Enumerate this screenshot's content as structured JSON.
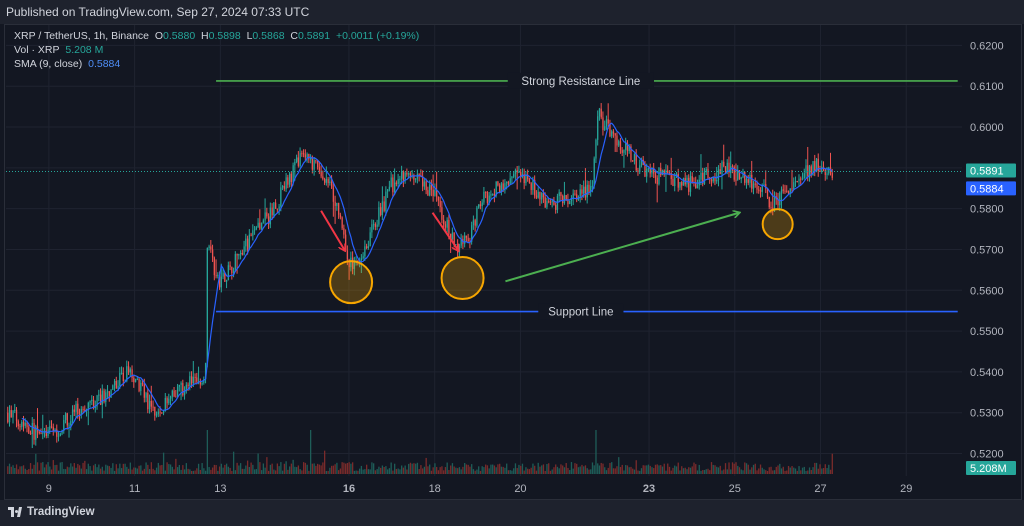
{
  "header": {
    "published": "Published on TradingView.com, Sep 27, 2024 07:33 UTC"
  },
  "legend": {
    "symbol": "XRP / TetherUS, 1h, Binance",
    "open_label": "O",
    "open": "0.5880",
    "high_label": "H",
    "high": "0.5898",
    "low_label": "L",
    "low": "0.5868",
    "close_label": "C",
    "close": "0.5891",
    "change": "+0.0011 (+0.19%)",
    "vol_label": "Vol · XRP",
    "vol": "5.208 M",
    "sma_label": "SMA (9, close)",
    "sma": "0.5884"
  },
  "footer": {
    "brand": "TradingView"
  },
  "colors": {
    "up": "#26a69a",
    "down": "#ef5350",
    "sma": "#2962ff",
    "resistance": "#4caf50",
    "support": "#2962ff",
    "circle": "#f7a600",
    "arrow": "#f23645",
    "trend": "#4caf50"
  },
  "chart_data": {
    "type": "candlestick",
    "y_axis": {
      "range": [
        0.5145,
        0.625
      ],
      "ticks": [
        "0.6200",
        "0.6100",
        "0.6000",
        "0.5900",
        "0.5800",
        "0.5700",
        "0.5600",
        "0.5500",
        "0.5400",
        "0.5300",
        "0.5200"
      ]
    },
    "x_axis": {
      "range_days": [
        8.0,
        30.3
      ],
      "ticks": [
        {
          "day": 9,
          "label": "9"
        },
        {
          "day": 11,
          "label": "11"
        },
        {
          "day": 13,
          "label": "13"
        },
        {
          "day": 16,
          "label": "16"
        },
        {
          "day": 18,
          "label": "18"
        },
        {
          "day": 20,
          "label": "20"
        },
        {
          "day": 23,
          "label": "23"
        },
        {
          "day": 25,
          "label": "25"
        },
        {
          "day": 27,
          "label": "27"
        },
        {
          "day": 29,
          "label": "29"
        }
      ]
    },
    "price_path": [
      [
        8.0,
        0.53
      ],
      [
        8.4,
        0.528
      ],
      [
        8.8,
        0.524
      ],
      [
        9.2,
        0.526
      ],
      [
        9.6,
        0.53
      ],
      [
        10.0,
        0.532
      ],
      [
        10.4,
        0.535
      ],
      [
        10.8,
        0.54
      ],
      [
        11.0,
        0.539
      ],
      [
        11.3,
        0.533
      ],
      [
        11.5,
        0.529
      ],
      [
        11.8,
        0.533
      ],
      [
        12.1,
        0.536
      ],
      [
        12.5,
        0.5385
      ],
      [
        12.65,
        0.54
      ],
      [
        12.7,
        0.575
      ],
      [
        12.9,
        0.562
      ],
      [
        13.1,
        0.564
      ],
      [
        13.4,
        0.568
      ],
      [
        13.8,
        0.574
      ],
      [
        14.2,
        0.579
      ],
      [
        14.6,
        0.587
      ],
      [
        14.9,
        0.593
      ],
      [
        15.2,
        0.59
      ],
      [
        15.5,
        0.587
      ],
      [
        15.8,
        0.578
      ],
      [
        16.0,
        0.566
      ],
      [
        16.3,
        0.569
      ],
      [
        16.6,
        0.576
      ],
      [
        17.0,
        0.586
      ],
      [
        17.4,
        0.588
      ],
      [
        17.9,
        0.585
      ],
      [
        18.2,
        0.578
      ],
      [
        18.5,
        0.57
      ],
      [
        18.8,
        0.573
      ],
      [
        19.1,
        0.582
      ],
      [
        19.5,
        0.586
      ],
      [
        19.9,
        0.588
      ],
      [
        20.3,
        0.585
      ],
      [
        20.7,
        0.581
      ],
      [
        21.1,
        0.583
      ],
      [
        21.5,
        0.584
      ],
      [
        21.7,
        0.588
      ],
      [
        21.8,
        0.603
      ],
      [
        22.1,
        0.599
      ],
      [
        22.4,
        0.595
      ],
      [
        22.8,
        0.59
      ],
      [
        23.2,
        0.588
      ],
      [
        23.6,
        0.587
      ],
      [
        24.0,
        0.586
      ],
      [
        24.4,
        0.588
      ],
      [
        24.8,
        0.59
      ],
      [
        25.2,
        0.588
      ],
      [
        25.6,
        0.585
      ],
      [
        25.9,
        0.581
      ],
      [
        26.2,
        0.584
      ],
      [
        26.6,
        0.589
      ],
      [
        26.9,
        0.591
      ],
      [
        27.2,
        0.588
      ],
      [
        27.3,
        0.5891
      ]
    ],
    "last_price": 0.5891,
    "last_price_label": "0.5891",
    "sma_last": 0.5884,
    "sma_last_label": "0.5884",
    "volume_last_label": "5.208M",
    "volume_spike_days": [
      12.7,
      15.1,
      21.75
    ],
    "resistance": {
      "price": 0.6113,
      "from_day": 12.9,
      "to_day": 30.2,
      "label": "Strong Resistance Line"
    },
    "support": {
      "price": 0.5548,
      "from_day": 12.9,
      "to_day": 30.2,
      "label": "Support Line"
    },
    "circles": [
      {
        "day": 16.05,
        "price": 0.562
      },
      {
        "day": 18.65,
        "price": 0.563
      },
      {
        "day": 26.0,
        "price": 0.5762
      }
    ],
    "red_arrows": [
      {
        "from": [
          15.35,
          0.5795
        ],
        "to": [
          15.9,
          0.5698
        ]
      },
      {
        "from": [
          17.95,
          0.579
        ],
        "to": [
          18.55,
          0.5698
        ]
      }
    ],
    "trend_arrow": {
      "from": [
        19.65,
        0.5622
      ],
      "to": [
        25.1,
        0.579
      ]
    }
  }
}
